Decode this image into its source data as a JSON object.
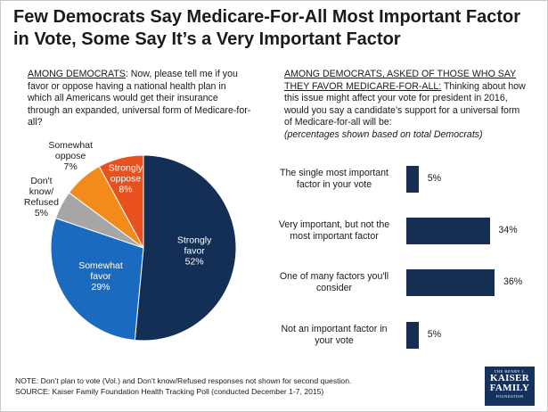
{
  "header": {
    "title": "Few Democrats Say Medicare-For-All Most Important Factor in Vote, Some Say It’s a Very Important Factor"
  },
  "left_question": {
    "prefix": "AMONG DEMOCRATS",
    "text": ": Now, please tell me if you favor or oppose having a national health plan in which all Americans would get their insurance through an expanded, universal form of Medicare-for-all?"
  },
  "right_question": {
    "prefix": "AMONG DEMOCRATS, ASKED OF THOSE WHO SAY THEY FAVOR MEDICARE-FOR-ALL:",
    "text": " Thinking about how this issue might affect your vote for president in 2016, would you say a candidate’s support for a universal form of Medicare-for-all will be:",
    "note": "(percentages shown based on total Democrats)"
  },
  "chart_data": [
    {
      "type": "pie",
      "slices": [
        {
          "label": "Strongly favor",
          "value": 52,
          "display": "52%",
          "color": "#132f55",
          "label_color": "#ffffff"
        },
        {
          "label": "Somewhat favor",
          "value": 29,
          "display": "29%",
          "color": "#1a6bc0",
          "label_color": "#ffffff"
        },
        {
          "label": "Don't know/ Refused",
          "value": 5,
          "display": "5%",
          "color": "#a6a6a6",
          "label_color": "#1a1a1a"
        },
        {
          "label": "Somewhat oppose",
          "value": 7,
          "display": "7%",
          "color": "#f28a1c",
          "label_color": "#1a1a1a"
        },
        {
          "label": "Strongly oppose",
          "value": 8,
          "display": "8%",
          "color": "#e8501e",
          "label_color": "#ffffff"
        }
      ]
    },
    {
      "type": "bar",
      "orientation": "horizontal",
      "categories": [
        "The single most important factor in your vote",
        "Very important, but not the most important factor",
        "One of many factors you'll consider",
        "Not an important factor in your vote"
      ],
      "values": [
        5,
        34,
        36,
        5
      ],
      "display": [
        "5%",
        "34%",
        "36%",
        "5%"
      ],
      "color": "#152e52"
    }
  ],
  "footer": {
    "note": "NOTE: Don’t plan to vote (Vol.) and Don’t know/Refused responses not shown for second question.",
    "source": "SOURCE: Kaiser Family Foundation Health Tracking Poll (conducted December 1-7, 2015)"
  },
  "logo": {
    "line1": "THE HENRY J.",
    "line2": "KAISER",
    "line3": "FAMILY",
    "line4": "FOUNDATION"
  }
}
